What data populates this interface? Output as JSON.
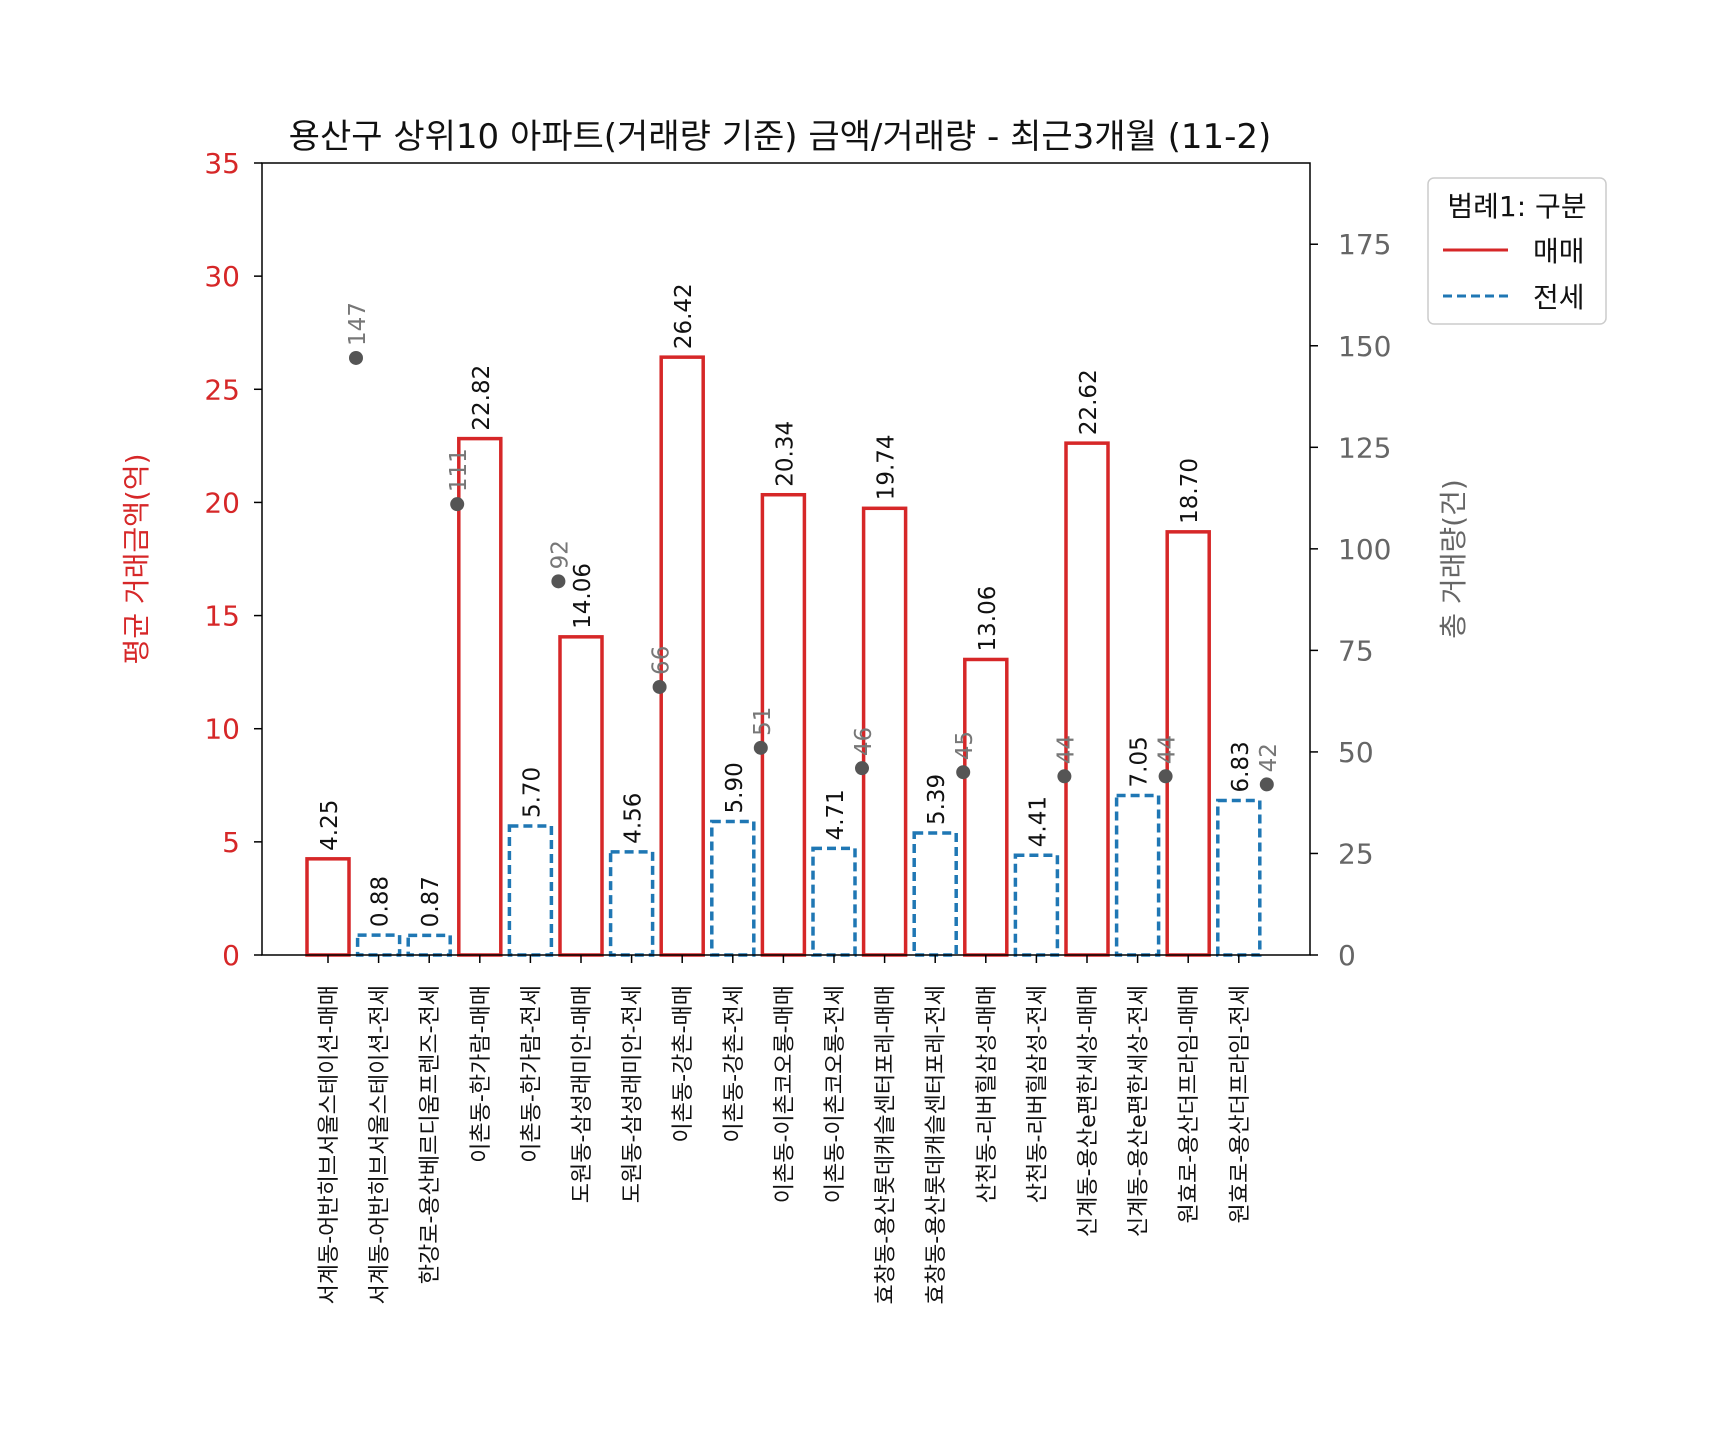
{
  "chart_data": {
    "type": "bar",
    "title": "용산구 상위10 아파트(거래량 기준) 금액/거래량 - 최근3개월 (11-2)",
    "ylabel": "평균 거래금액(억)",
    "y2label": "총 거래량(건)",
    "ylim": [
      0,
      35
    ],
    "y2lim": [
      0,
      195
    ],
    "yticks": [
      "0",
      "5",
      "10",
      "15",
      "20",
      "25",
      "30",
      "35"
    ],
    "y2ticks": [
      "0",
      "25",
      "50",
      "75",
      "100",
      "125",
      "150",
      "175"
    ],
    "legend": {
      "title": "범례1: 구분",
      "placement": "outside-top-right",
      "items": [
        {
          "label": "매매",
          "color": "#d62728",
          "style": "solid"
        },
        {
          "label": "전세",
          "color": "#1f77b4",
          "style": "dashed"
        }
      ]
    },
    "volume_color": "#555555",
    "categories": [
      "서계동-어반히브서울스테이션-매매",
      "서계동-어반히브서울스테이션-전세",
      "한강로-용산베르디움프렌즈-전세",
      "이촌동-한가람-매매",
      "이촌동-한가람-전세",
      "도원동-삼성래미안-매매",
      "도원동-삼성래미안-전세",
      "이촌동-강촌-매매",
      "이촌동-강촌-전세",
      "이촌동-이촌코오롱-매매",
      "이촌동-이촌코오롱-전세",
      "효창동-용산롯데캐슬센터포레-매매",
      "효창동-용산롯데캐슬센터포레-전세",
      "산천동-리버힐삼성-매매",
      "산천동-리버힐삼성-전세",
      "신계동-용산e편한세상-매매",
      "신계동-용산e편한세상-전세",
      "원효로-용산더프라임-매매",
      "원효로-용산더프라임-전세"
    ],
    "kinds": [
      "매매",
      "전세",
      "전세",
      "매매",
      "전세",
      "매매",
      "전세",
      "매매",
      "전세",
      "매매",
      "전세",
      "매매",
      "전세",
      "매매",
      "전세",
      "매매",
      "전세",
      "매매",
      "전세"
    ],
    "series": [
      {
        "name": "평균 거래금액(억)",
        "values": [
          4.25,
          0.88,
          0.87,
          22.82,
          5.7,
          14.06,
          4.56,
          26.42,
          5.9,
          20.34,
          4.71,
          19.74,
          5.39,
          13.06,
          4.41,
          22.62,
          7.05,
          18.7,
          6.83
        ],
        "labels": [
          "4.25",
          "0.88",
          "0.87",
          "22.82",
          "5.70",
          "14.06",
          "4.56",
          "26.42",
          "5.90",
          "20.34",
          "4.71",
          "19.74",
          "5.39",
          "13.06",
          "4.41",
          "22.62",
          "7.05",
          "18.70",
          "6.83"
        ]
      },
      {
        "name": "총 거래량(건)",
        "points": [
          {
            "index": 1,
            "value": 147,
            "label": "147"
          },
          {
            "index": 3,
            "value": 111,
            "label": "111"
          },
          {
            "index": 5,
            "value": 92,
            "label": "92"
          },
          {
            "index": 7,
            "value": 66,
            "label": "66"
          },
          {
            "index": 9,
            "value": 51,
            "label": "51"
          },
          {
            "index": 11,
            "value": 46,
            "label": "46"
          },
          {
            "index": 13,
            "value": 45,
            "label": "45"
          },
          {
            "index": 15,
            "value": 44,
            "label": "44"
          },
          {
            "index": 17,
            "value": 44,
            "label": "44"
          },
          {
            "index": 19,
            "value": 42,
            "label": "42"
          }
        ]
      }
    ]
  }
}
